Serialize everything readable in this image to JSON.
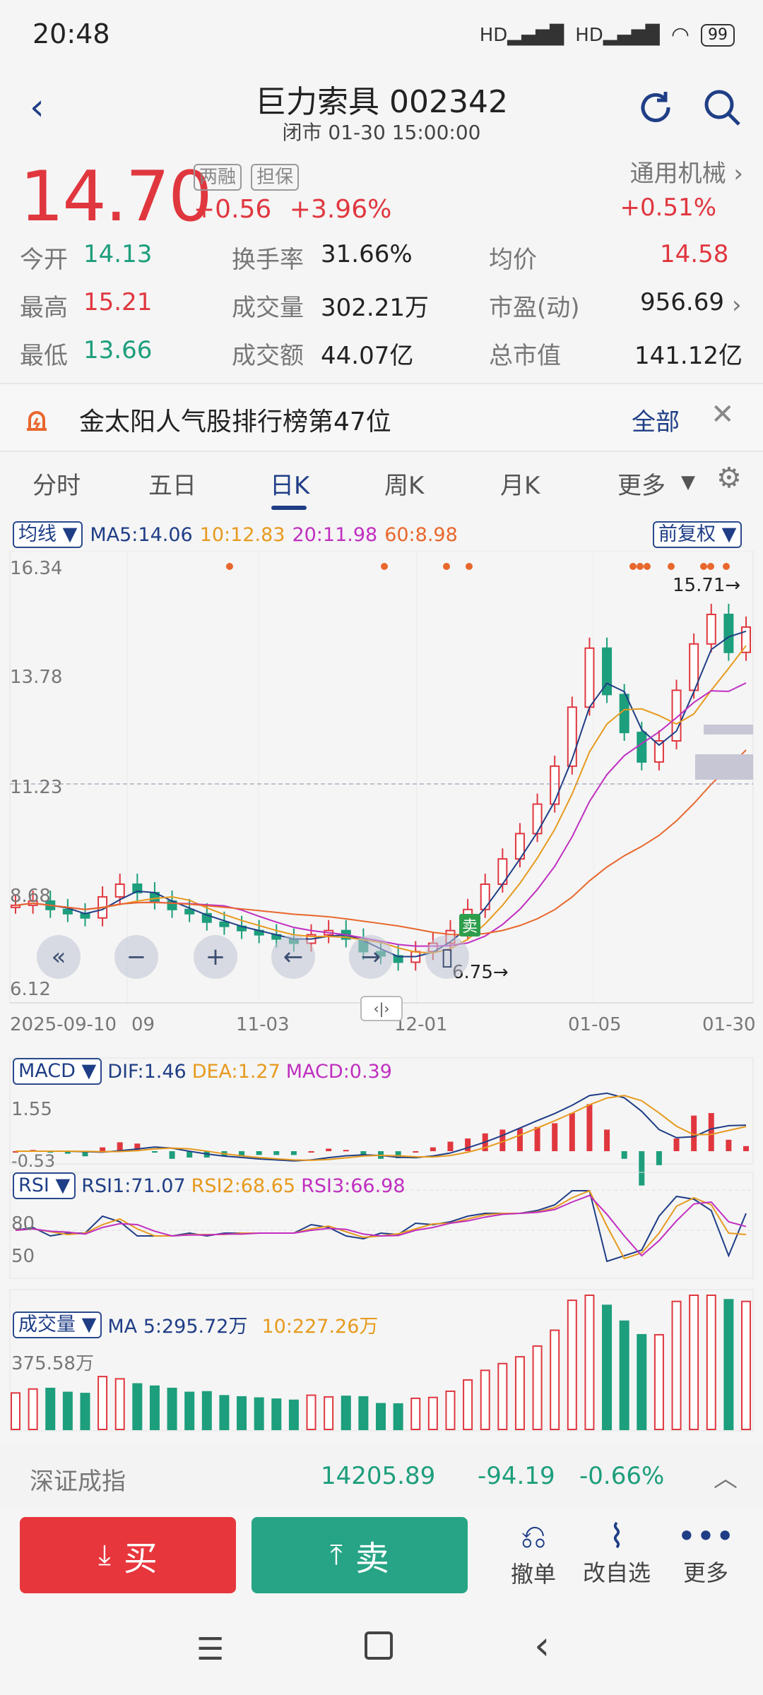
{
  "status_bar": {
    "time": "20:48",
    "battery": "99"
  },
  "header": {
    "title": "巨力索具 002342",
    "subtitle": "闭市 01-30 15:00:00"
  },
  "quote": {
    "price": "14.70",
    "tag1": "两融",
    "tag2": "担保",
    "change": "+0.56",
    "change_pct": "+3.96%",
    "sector": "通用机械",
    "sector_change": "+0.51%",
    "open_label": "今开",
    "open": "14.13",
    "high_label": "最高",
    "high": "15.21",
    "low_label": "最低",
    "low": "13.66",
    "turnover_label": "换手率",
    "turnover": "31.66%",
    "volume_label": "成交量",
    "volume": "302.21万",
    "amount_label": "成交额",
    "amount": "44.07亿",
    "avg_label": "均价",
    "avg": "14.58",
    "pe_label": "市盈(动)",
    "pe": "956.69",
    "mcap_label": "总市值",
    "mcap": "141.12亿"
  },
  "notice": {
    "text": "金太阳人气股排行榜第47位",
    "all": "全部"
  },
  "tabs": [
    "分时",
    "五日",
    "日K",
    "周K",
    "月K",
    "更多"
  ],
  "active_tab": "日K",
  "ma_bar": {
    "select": "均线",
    "ma5": "MA5:14.06",
    "ma10": "10:12.83",
    "ma20": "20:11.98",
    "ma60": "60:8.98",
    "adjust": "前复权"
  },
  "kline": {
    "y_ticks": [
      "16.34",
      "13.78",
      "11.23",
      "8.68",
      "6.12"
    ],
    "x_ticks": [
      "2025-09-10",
      "09",
      "11-03",
      "12-01",
      "01-05",
      "01-30"
    ],
    "max_label": "15.71→",
    "min_label": "6.75→",
    "sell_badge": "卖"
  },
  "macd": {
    "select": "MACD",
    "dif": "DIF:1.46",
    "dea": "DEA:1.27",
    "macd": "MACD:0.39",
    "top": "1.55",
    "bottom": "-0.53"
  },
  "rsi": {
    "select": "RSI",
    "rsi1": "RSI1:71.07",
    "rsi2": "RSI2:68.65",
    "rsi3": "RSI3:66.98",
    "l80": "80",
    "l50": "50"
  },
  "vol": {
    "select": "成交量",
    "ma5": "MA 5:295.72万",
    "ma10": "10:227.26万",
    "top": "375.58万"
  },
  "index_bar": {
    "name": "深证成指",
    "value": "14205.89",
    "change": "-94.19",
    "pct": "-0.66%"
  },
  "actions": {
    "buy": "买",
    "sell": "卖",
    "cancel": "撤单",
    "watch": "改自选",
    "more": "更多"
  },
  "chart_data": [
    {
      "type": "candlestick",
      "title": "",
      "ylim": [
        6.12,
        16.34
      ],
      "x_ticks": [
        "2025-09-10",
        "09",
        "11-03",
        "12-01",
        "01-05",
        "01-30"
      ],
      "series": [
        {
          "name": "MA5",
          "last": 14.06
        },
        {
          "name": "MA10",
          "last": 12.83
        },
        {
          "name": "MA20",
          "last": 11.98
        },
        {
          "name": "MA60",
          "last": 8.98
        }
      ],
      "close_trend": [
        8.1,
        8.2,
        8.0,
        7.9,
        7.8,
        8.3,
        8.6,
        8.4,
        8.2,
        8.0,
        7.9,
        7.7,
        7.6,
        7.5,
        7.4,
        7.3,
        7.2,
        7.4,
        7.5,
        7.3,
        7.0,
        6.9,
        6.75,
        7.0,
        7.2,
        7.5,
        8.0,
        8.6,
        9.2,
        9.8,
        10.5,
        11.4,
        12.8,
        14.2,
        13.1,
        12.2,
        11.5,
        12.0,
        13.2,
        14.3,
        15.0,
        14.1,
        14.7
      ],
      "annotations": [
        "15.71",
        "6.75"
      ]
    },
    {
      "type": "bar",
      "title": "MACD",
      "series": [
        {
          "name": "DIF",
          "last": 1.46
        },
        {
          "name": "DEA",
          "last": 1.27
        },
        {
          "name": "MACD",
          "last": 0.39
        }
      ],
      "ylim": [
        -0.53,
        1.55
      ]
    },
    {
      "type": "line",
      "title": "RSI",
      "series": [
        {
          "name": "RSI1",
          "last": 71.07
        },
        {
          "name": "RSI2",
          "last": 68.65
        },
        {
          "name": "RSI3",
          "last": 66.98
        }
      ],
      "ylim": [
        0,
        100
      ]
    },
    {
      "type": "bar",
      "title": "成交量",
      "series": [
        {
          "name": "MA 5",
          "last": "295.72万"
        },
        {
          "name": "10",
          "last": "227.26万"
        }
      ],
      "ymax": "375.58万"
    }
  ]
}
